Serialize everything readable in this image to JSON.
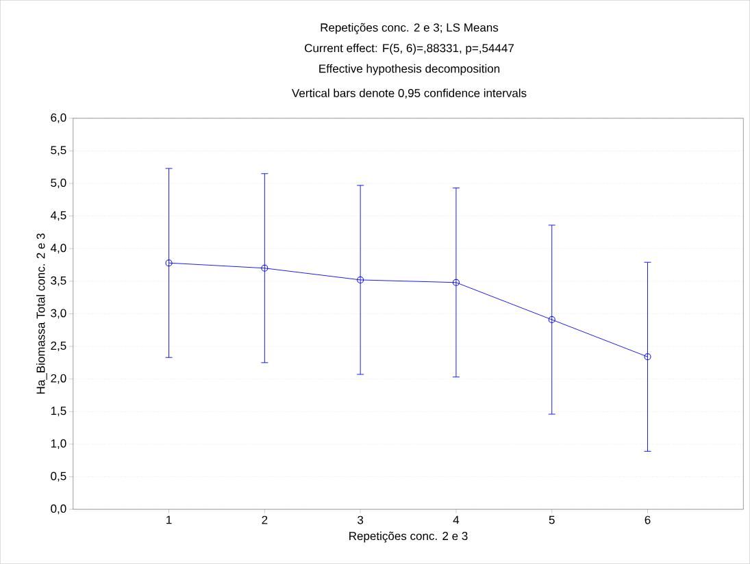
{
  "chart_data": {
    "type": "line",
    "title": "Repetições conc. 2 e 3; LS Means",
    "subtitle": "Current effect: F(5, 6)=,88331, p=,54447",
    "annotations": [
      "Effective hypothesis decomposition",
      "Vertical bars denote 0,95 confidence intervals"
    ],
    "xlabel": "Repetições conc. 2 e 3",
    "ylabel": "Ha_Biomassa Total conc. 2 e 3",
    "categories": [
      "1",
      "2",
      "3",
      "4",
      "5",
      "6"
    ],
    "series": [
      {
        "color": "#0000ff",
        "values": [
          3.78,
          3.7,
          3.52,
          3.48,
          2.91,
          2.34
        ],
        "errors": [
          1.45,
          1.45,
          1.45,
          1.45,
          1.45,
          1.45
        ]
      }
    ],
    "ylim": [
      0,
      6
    ],
    "yticks": [
      {
        "value": 0,
        "label": "0,0"
      },
      {
        "value": 0.5,
        "label": "0,5"
      },
      {
        "value": 1,
        "label": "1,0"
      },
      {
        "value": 1.5,
        "label": "1,5"
      },
      {
        "value": 2,
        "label": "2,0"
      },
      {
        "value": 2.5,
        "label": "2,5"
      },
      {
        "value": 3,
        "label": "3,0"
      },
      {
        "value": 3.5,
        "label": "3,5"
      },
      {
        "value": 4,
        "label": "4,0"
      },
      {
        "value": 4.5,
        "label": "4,5"
      },
      {
        "value": 5,
        "label": "5,0"
      },
      {
        "value": 5.5,
        "label": "5,5"
      },
      {
        "value": 6,
        "label": "6,0"
      }
    ],
    "grid": "y",
    "marker": "circle",
    "line_style": "solid"
  }
}
